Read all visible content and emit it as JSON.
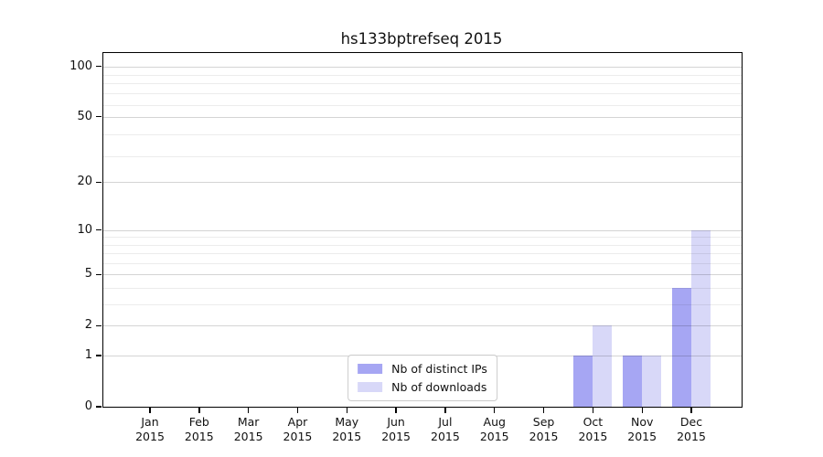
{
  "chart_data": {
    "type": "bar",
    "title": "hs133bptrefseq 2015",
    "categories": [
      "Jan",
      "Feb",
      "Mar",
      "Apr",
      "May",
      "Jun",
      "Jul",
      "Aug",
      "Sep",
      "Oct",
      "Nov",
      "Dec"
    ],
    "year_label": "2015",
    "series": [
      {
        "name": "Nb of distinct IPs",
        "color": "#a6a6f3",
        "values": [
          0,
          0,
          0,
          0,
          0,
          0,
          0,
          0,
          0,
          1,
          1,
          4
        ]
      },
      {
        "name": "Nb of downloads",
        "color": "#d8d8f8",
        "values": [
          0,
          0,
          0,
          0,
          0,
          0,
          0,
          0,
          0,
          2,
          1,
          10
        ]
      }
    ],
    "xlabel": "",
    "ylabel": "",
    "y_scale": "log10(1+x)",
    "ylim": [
      0,
      120
    ],
    "y_major_ticks": [
      0,
      1,
      2,
      5,
      10,
      20,
      50,
      100
    ],
    "y_minor_gridlines": [
      3,
      4,
      6,
      7,
      8,
      9,
      29,
      39,
      59,
      69,
      79,
      89
    ],
    "grid": "on",
    "legend_position": "lower center"
  }
}
